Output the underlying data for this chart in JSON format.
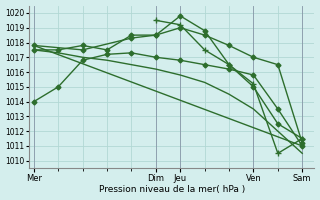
{
  "xlabel": "Pression niveau de la mer( hPa )",
  "bg_color": "#d4eeed",
  "grid_color": "#b2d8d4",
  "line_color": "#2d6e2d",
  "ylim": [
    1009.5,
    1020.5
  ],
  "yticks": [
    1010,
    1011,
    1012,
    1013,
    1014,
    1015,
    1016,
    1017,
    1018,
    1019,
    1020
  ],
  "xlim": [
    -0.2,
    11.5
  ],
  "tick_label_positions": [
    0,
    5,
    6,
    9,
    11
  ],
  "tick_labels_show": [
    "Mer",
    "Dim",
    "Jeu",
    "Ven",
    "Sam"
  ],
  "lines": [
    {
      "x": [
        0,
        1,
        2,
        3,
        4,
        5,
        6,
        7,
        8,
        9,
        10,
        11
      ],
      "y": [
        1014.0,
        1015.0,
        1016.8,
        1017.2,
        1017.3,
        1017.0,
        1016.8,
        1016.5,
        1016.2,
        1015.8,
        1013.5,
        1011.0
      ],
      "marker": "D",
      "markersize": 2.5,
      "linewidth": 1.0
    },
    {
      "x": [
        0,
        1,
        2,
        3,
        4,
        5,
        6,
        7,
        8,
        9,
        10,
        11
      ],
      "y": [
        1017.5,
        1017.5,
        1017.8,
        1017.5,
        1018.5,
        1018.5,
        1019.0,
        1018.5,
        1017.8,
        1017.0,
        1016.5,
        1011.2
      ],
      "marker": "D",
      "markersize": 2.5,
      "linewidth": 1.0
    },
    {
      "x": [
        0,
        2,
        4,
        5,
        6,
        7,
        8,
        9,
        10,
        11
      ],
      "y": [
        1017.8,
        1017.5,
        1018.3,
        1018.5,
        1019.8,
        1018.8,
        1016.5,
        1015.0,
        1012.5,
        1011.5
      ],
      "marker": "D",
      "markersize": 2.5,
      "linewidth": 1.0
    },
    {
      "x": [
        0,
        1,
        2,
        3,
        4,
        5,
        6,
        7,
        8,
        9,
        10,
        11
      ],
      "y": [
        1017.5,
        1017.3,
        1017.0,
        1016.8,
        1016.5,
        1016.2,
        1015.8,
        1015.3,
        1014.5,
        1013.5,
        1012.0,
        1010.5
      ],
      "marker": "None",
      "markersize": 0,
      "linewidth": 1.0
    },
    {
      "x": [
        5,
        6,
        7,
        8,
        9,
        10,
        11
      ],
      "y": [
        1019.5,
        1019.2,
        1017.5,
        1016.5,
        1015.2,
        1010.5,
        1011.5
      ],
      "marker": "+",
      "markersize": 4,
      "linewidth": 1.0
    },
    {
      "x": [
        0,
        11
      ],
      "y": [
        1017.8,
        1011.0
      ],
      "marker": "None",
      "markersize": 0,
      "linewidth": 1.0
    }
  ],
  "vlines": [
    0,
    5,
    6,
    9,
    11
  ],
  "vline_color": "#6a6a8a"
}
